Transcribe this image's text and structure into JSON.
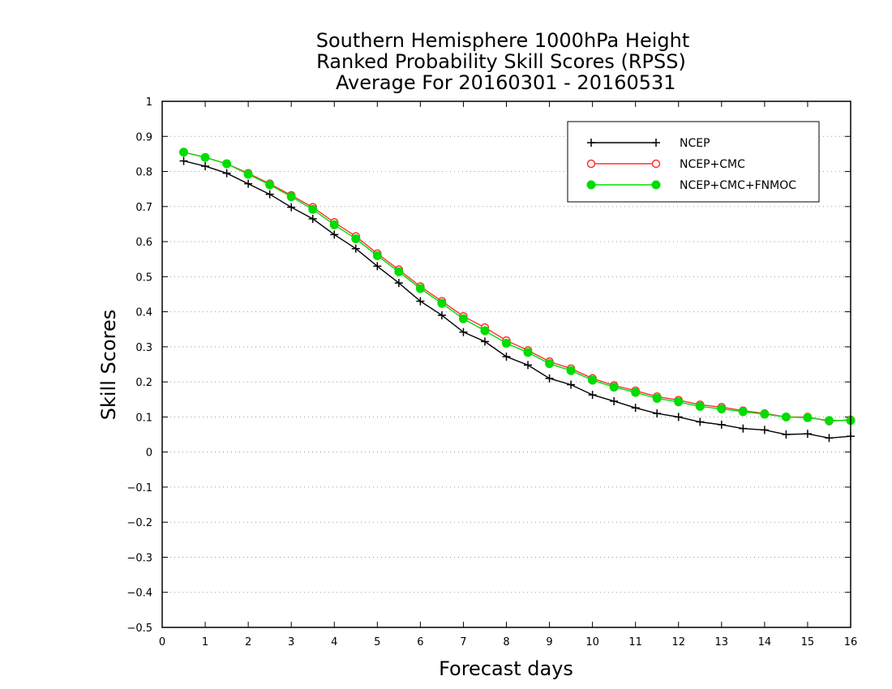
{
  "chart_data": {
    "type": "line",
    "title_lines": [
      "Southern Hemisphere 1000hPa Height",
      "Ranked Probability Skill Scores (RPSS)",
      " Average For 20160301 - 20160531"
    ],
    "xlabel": "Forecast days",
    "ylabel": "Skill Scores",
    "xlim": [
      0,
      16
    ],
    "ylim": [
      -0.5,
      1
    ],
    "x_ticks": [
      0,
      1,
      2,
      3,
      4,
      5,
      6,
      7,
      8,
      9,
      10,
      11,
      12,
      13,
      14,
      15,
      16
    ],
    "x_tick_labels": [
      "0",
      "1",
      "2",
      "3",
      "4",
      "5",
      "6",
      "7",
      "8",
      "9",
      "10",
      "11",
      "12",
      "13",
      "14",
      "15",
      "16"
    ],
    "y_ticks": [
      -0.5,
      -0.4,
      -0.3,
      -0.2,
      -0.1,
      0,
      0.1,
      0.2,
      0.3,
      0.4,
      0.5,
      0.6,
      0.7,
      0.8,
      0.9,
      1
    ],
    "y_tick_labels": [
      "−0.5",
      "−0.4",
      "−0.3",
      "−0.2",
      "−0.1",
      "0",
      "0.1",
      "0.2",
      "0.3",
      "0.4",
      "0.5",
      "0.6",
      "0.7",
      "0.8",
      "0.9",
      "1"
    ],
    "grid": "horizontal dotted",
    "legend_position": "top-right",
    "x": [
      0.5,
      1,
      1.5,
      2,
      2.5,
      3,
      3.5,
      4,
      4.5,
      5,
      5.5,
      6,
      6.5,
      7,
      7.5,
      8,
      8.5,
      9,
      9.5,
      10,
      10.5,
      11,
      11.5,
      12,
      12.5,
      13,
      13.5,
      14,
      14.5,
      15,
      15.5,
      16
    ],
    "series": [
      {
        "name": "NCEP",
        "color": "#000000",
        "marker": "plus",
        "values": [
          0.83,
          0.815,
          0.795,
          0.765,
          0.735,
          0.698,
          0.665,
          0.62,
          0.58,
          0.53,
          0.482,
          0.43,
          0.39,
          0.342,
          0.315,
          0.272,
          0.248,
          0.21,
          0.192,
          0.163,
          0.145,
          0.126,
          0.11,
          0.1,
          0.086,
          0.078,
          0.067,
          0.063,
          0.05,
          0.052,
          0.04,
          0.045
        ]
      },
      {
        "name": "NCEP+CMC",
        "color": "#ff3030",
        "marker": "open-circle",
        "values": [
          0.855,
          0.84,
          0.822,
          0.795,
          0.765,
          0.732,
          0.698,
          0.655,
          0.615,
          0.566,
          0.52,
          0.472,
          0.43,
          0.387,
          0.355,
          0.318,
          0.29,
          0.258,
          0.238,
          0.21,
          0.19,
          0.175,
          0.158,
          0.148,
          0.135,
          0.128,
          0.118,
          0.11,
          0.1,
          0.1,
          0.088,
          0.092
        ]
      },
      {
        "name": "NCEP+CMC+FNMOC",
        "color": "#00dd00",
        "marker": "filled-circle",
        "values": [
          0.855,
          0.84,
          0.822,
          0.792,
          0.762,
          0.728,
          0.692,
          0.648,
          0.608,
          0.56,
          0.514,
          0.466,
          0.424,
          0.38,
          0.346,
          0.31,
          0.284,
          0.252,
          0.232,
          0.205,
          0.185,
          0.17,
          0.153,
          0.143,
          0.13,
          0.123,
          0.115,
          0.108,
          0.1,
          0.098,
          0.09,
          0.09
        ]
      }
    ]
  }
}
